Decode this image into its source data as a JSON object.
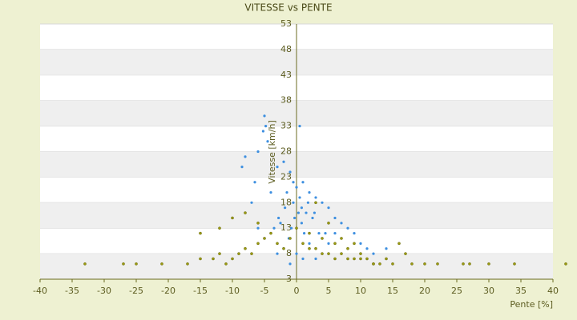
{
  "chart_data": {
    "type": "scatter",
    "title": "VITESSE vs PENTE",
    "x_label": "Pente [%]",
    "y_label": "Vitesse [km/h]",
    "xlim": [
      -40,
      40
    ],
    "xticks": [
      -40,
      -35,
      -30,
      -25,
      -20,
      -15,
      -10,
      -5,
      0,
      5,
      10,
      15,
      20,
      25,
      30,
      35,
      40
    ],
    "ylim": [
      3,
      53
    ],
    "yticks": [
      3,
      8,
      13,
      18,
      23,
      28,
      33,
      38,
      43,
      48,
      53
    ],
    "grid": true,
    "series": [
      {
        "color": "#3d8fe0",
        "x": [
          -5,
          -4.8,
          -5.2,
          -4.5,
          -6,
          -8,
          -8.5,
          -3,
          -2,
          -1,
          0.5,
          1,
          2,
          3,
          4,
          5,
          6,
          -1.5,
          -0.5,
          0.8,
          1.5,
          2.5,
          -2.5,
          -3.5,
          3.5,
          4.5,
          -4,
          -6.5,
          -7,
          7,
          8,
          9,
          10,
          11,
          12,
          0.3,
          -0.3,
          0.8,
          -0.8,
          1.2,
          -1.2,
          2,
          -2,
          0,
          0,
          1,
          -1,
          3,
          -3,
          5,
          -5,
          6,
          -6,
          0.5,
          -0.5,
          1.8,
          -1.8,
          2.8,
          -2.8,
          14
        ],
        "values": [
          35,
          33,
          32,
          30,
          28,
          27,
          25,
          25,
          26,
          24,
          33,
          22,
          20,
          19,
          18,
          17,
          15,
          20,
          18,
          17,
          16,
          15,
          14,
          13,
          12,
          12,
          20,
          22,
          18,
          14,
          13,
          12,
          10,
          9,
          8,
          16,
          15,
          14,
          13,
          12,
          11,
          10,
          9,
          8,
          21,
          7,
          6,
          7,
          8,
          10,
          11,
          12,
          13,
          19,
          22,
          18,
          17,
          16,
          15,
          9
        ]
      },
      {
        "color": "#9a9a10",
        "x": [
          -33,
          -27,
          -25,
          -21,
          -17,
          -15,
          -13,
          -12,
          -11,
          -10,
          -9,
          -8,
          -7,
          -6,
          -5,
          -4,
          -3,
          -2,
          -1,
          0,
          1,
          2,
          3,
          4,
          5,
          6,
          7,
          8,
          9,
          10,
          11,
          12,
          13,
          14,
          15,
          16,
          17,
          18,
          20,
          22,
          26,
          27,
          30,
          34,
          42,
          -15,
          -12,
          -10,
          -8,
          -6,
          2,
          4,
          6,
          8,
          10,
          3,
          5,
          7,
          9,
          12
        ],
        "values": [
          6,
          6,
          6,
          6,
          6,
          7,
          7,
          8,
          6,
          7,
          8,
          9,
          8,
          10,
          11,
          12,
          10,
          9,
          11,
          13,
          10,
          9,
          9,
          8,
          8,
          7,
          8,
          7,
          7,
          7,
          7,
          6,
          6,
          7,
          6,
          10,
          8,
          6,
          6,
          6,
          6,
          6,
          6,
          6,
          6,
          12,
          13,
          15,
          16,
          14,
          12,
          11,
          10,
          9,
          8,
          18,
          14,
          11,
          10,
          6
        ]
      }
    ]
  }
}
